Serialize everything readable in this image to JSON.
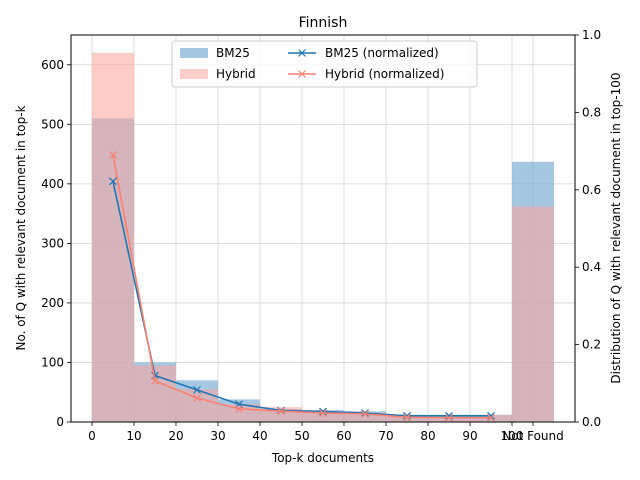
{
  "chart_data": {
    "type": "bar",
    "title": "Finnish",
    "xlabel": "Top-k documents",
    "ylabel": "No. of Q with relevant document in top-k",
    "y2label": "Distribution of Q with relevant document in top-100",
    "xticks": [
      "0",
      "10",
      "20",
      "30",
      "40",
      "50",
      "60",
      "70",
      "80",
      "90",
      "100",
      "Not Found"
    ],
    "ylim": [
      0,
      650
    ],
    "yticks": [
      "0",
      "100",
      "200",
      "300",
      "400",
      "500",
      "600"
    ],
    "y2lim": [
      0,
      1.0
    ],
    "y2ticks": [
      "0.0",
      "0.2",
      "0.4",
      "0.6",
      "0.8",
      "1.0"
    ],
    "grid": true,
    "legend": "top-center",
    "bins": [
      {
        "start": 0,
        "end": 10
      },
      {
        "start": 10,
        "end": 20
      },
      {
        "start": 20,
        "end": 30
      },
      {
        "start": 30,
        "end": 40
      },
      {
        "start": 40,
        "end": 50
      },
      {
        "start": 50,
        "end": 60
      },
      {
        "start": 60,
        "end": 70
      },
      {
        "start": 70,
        "end": 80
      },
      {
        "start": 80,
        "end": 90
      },
      {
        "start": 90,
        "end": 100
      },
      {
        "start": 100,
        "end": 110
      }
    ],
    "bar_series": [
      {
        "name": "BM25",
        "color": "#7fb0d5",
        "opacity": 0.7,
        "values": [
          510,
          100,
          70,
          38,
          22,
          20,
          18,
          12,
          12,
          12,
          437
        ]
      },
      {
        "name": "Hybrid",
        "color": "#ffa49a",
        "opacity": 0.55,
        "values": [
          620,
          95,
          55,
          30,
          25,
          18,
          16,
          12,
          12,
          12,
          362
        ]
      }
    ],
    "line_series": [
      {
        "name": "BM25 (normalized)",
        "color": "#1f77b4",
        "x": [
          5,
          15,
          25,
          35,
          45,
          55,
          65,
          75,
          85,
          95
        ],
        "values": [
          0.622,
          0.12,
          0.083,
          0.046,
          0.03,
          0.027,
          0.023,
          0.016,
          0.016,
          0.016
        ]
      },
      {
        "name": "Hybrid (normalized)",
        "color": "#fa8072",
        "x": [
          5,
          15,
          25,
          35,
          45,
          55,
          65,
          75,
          85,
          95
        ],
        "values": [
          0.69,
          0.106,
          0.062,
          0.034,
          0.028,
          0.023,
          0.021,
          0.012,
          0.011,
          0.011
        ]
      }
    ]
  }
}
